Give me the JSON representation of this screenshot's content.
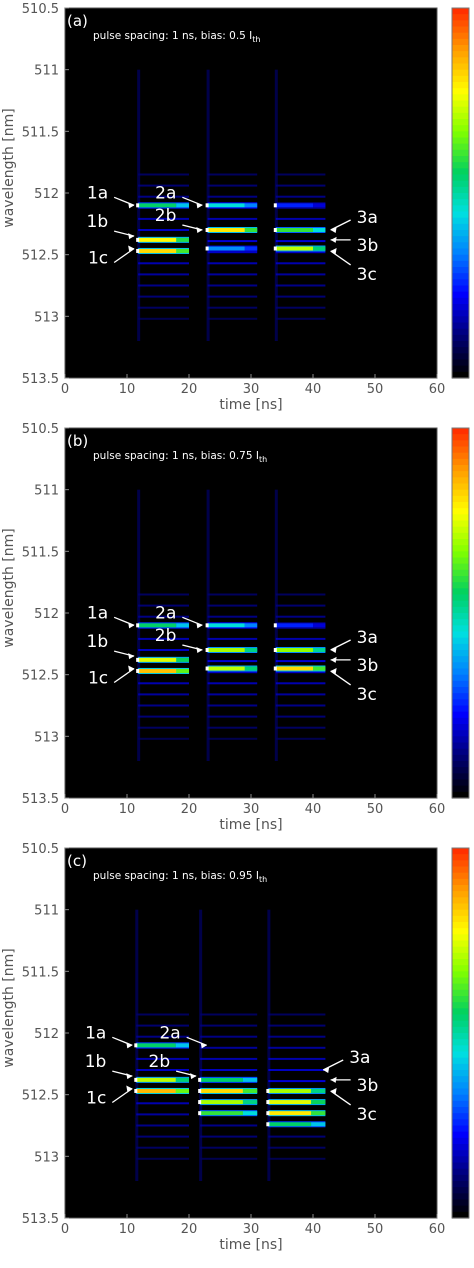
{
  "colormap": [
    "#000000",
    "#00007a",
    "#0000ff",
    "#0080ff",
    "#00e0e0",
    "#00d060",
    "#80ff00",
    "#ffff00",
    "#ffa000",
    "#ff3000"
  ],
  "chart_data": [
    {
      "type": "heatmap",
      "panel_label": "(a)",
      "annotation_prefix": "pulse spacing: 1 ns, bias: 0.5 I",
      "annotation_sub": "th",
      "xlabel": "time [ns]",
      "ylabel": "wavelength [nm]",
      "xlim": [
        0,
        60
      ],
      "ylim": [
        513.5,
        510.5
      ],
      "x_ticks": [
        "0",
        "10",
        "20",
        "30",
        "40",
        "50",
        "60"
      ],
      "y_ticks": [
        "510.5",
        "511",
        "511.5",
        "512",
        "512.5",
        "513",
        "513.5"
      ],
      "pulses": [
        {
          "start": 11.8,
          "end": 20.0,
          "lines": [
            {
              "wl": 512.1,
              "level": 0.55
            },
            {
              "wl": 512.38,
              "level": 0.78
            },
            {
              "wl": 512.47,
              "level": 0.82
            }
          ]
        },
        {
          "start": 23.0,
          "end": 31.0,
          "lines": [
            {
              "wl": 512.1,
              "level": 0.45
            },
            {
              "wl": 512.3,
              "level": 0.8
            },
            {
              "wl": 512.45,
              "level": 0.35
            }
          ]
        },
        {
          "start": 34.0,
          "end": 42.0,
          "lines": [
            {
              "wl": 512.1,
              "level": 0.25
            },
            {
              "wl": 512.3,
              "level": 0.6
            },
            {
              "wl": 512.45,
              "level": 0.72
            }
          ]
        }
      ],
      "markers": [
        {
          "label": "1a",
          "wl": 512.1,
          "t": 11.8,
          "side": "left"
        },
        {
          "label": "1b",
          "wl": 512.35,
          "t": 11.8,
          "side": "left"
        },
        {
          "label": "1c",
          "wl": 512.45,
          "t": 11.8,
          "side": "left"
        },
        {
          "label": "2a",
          "wl": 512.1,
          "t": 22.8,
          "side": "left"
        },
        {
          "label": "2b",
          "wl": 512.3,
          "t": 22.8,
          "side": "left"
        },
        {
          "label": "3a",
          "wl": 512.3,
          "t": 42.2,
          "side": "right"
        },
        {
          "label": "3b",
          "wl": 512.38,
          "t": 42.2,
          "side": "right"
        },
        {
          "label": "3c",
          "wl": 512.47,
          "t": 42.2,
          "side": "right"
        }
      ]
    },
    {
      "type": "heatmap",
      "panel_label": "(b)",
      "annotation_prefix": "pulse spacing: 1 ns, bias: 0.75 I",
      "annotation_sub": "th",
      "xlabel": "time [ns]",
      "ylabel": "wavelength [nm]",
      "xlim": [
        0,
        60
      ],
      "ylim": [
        513.5,
        510.5
      ],
      "x_ticks": [
        "0",
        "10",
        "20",
        "30",
        "40",
        "50",
        "60"
      ],
      "y_ticks": [
        "510.5",
        "511",
        "511.5",
        "512",
        "512.5",
        "513",
        "513.5"
      ],
      "pulses": [
        {
          "start": 11.8,
          "end": 20.0,
          "lines": [
            {
              "wl": 512.1,
              "level": 0.55
            },
            {
              "wl": 512.38,
              "level": 0.75
            },
            {
              "wl": 512.47,
              "level": 0.85
            }
          ]
        },
        {
          "start": 23.0,
          "end": 31.0,
          "lines": [
            {
              "wl": 512.1,
              "level": 0.45
            },
            {
              "wl": 512.3,
              "level": 0.7
            },
            {
              "wl": 512.45,
              "level": 0.72
            }
          ]
        },
        {
          "start": 34.0,
          "end": 42.0,
          "lines": [
            {
              "wl": 512.1,
              "level": 0.25
            },
            {
              "wl": 512.3,
              "level": 0.68
            },
            {
              "wl": 512.45,
              "level": 0.82
            }
          ]
        }
      ],
      "markers": [
        {
          "label": "1a",
          "wl": 512.1,
          "t": 11.8,
          "side": "left"
        },
        {
          "label": "1b",
          "wl": 512.35,
          "t": 11.8,
          "side": "left"
        },
        {
          "label": "1c",
          "wl": 512.45,
          "t": 11.8,
          "side": "left"
        },
        {
          "label": "2a",
          "wl": 512.1,
          "t": 22.8,
          "side": "left"
        },
        {
          "label": "2b",
          "wl": 512.3,
          "t": 22.8,
          "side": "left"
        },
        {
          "label": "3a",
          "wl": 512.3,
          "t": 42.2,
          "side": "right"
        },
        {
          "label": "3b",
          "wl": 512.38,
          "t": 42.2,
          "side": "right"
        },
        {
          "label": "3c",
          "wl": 512.47,
          "t": 42.2,
          "side": "right"
        }
      ]
    },
    {
      "type": "heatmap",
      "panel_label": "(c)",
      "annotation_prefix": "pulse spacing: 1 ns, bias: 0.95 I",
      "annotation_sub": "th",
      "xlabel": "time [ns]",
      "ylabel": "wavelength [nm]",
      "xlim": [
        0,
        60
      ],
      "ylim": [
        513.5,
        510.5
      ],
      "x_ticks": [
        "0",
        "10",
        "20",
        "30",
        "40",
        "50",
        "60"
      ],
      "y_ticks": [
        "510.5",
        "511",
        "511.5",
        "512",
        "512.5",
        "513",
        "513.5"
      ],
      "pulses": [
        {
          "start": 11.5,
          "end": 20.0,
          "lines": [
            {
              "wl": 512.1,
              "level": 0.55
            },
            {
              "wl": 512.38,
              "level": 0.72
            },
            {
              "wl": 512.47,
              "level": 0.86
            }
          ]
        },
        {
          "start": 21.8,
          "end": 31.0,
          "lines": [
            {
              "wl": 512.38,
              "level": 0.55
            },
            {
              "wl": 512.47,
              "level": 0.82
            },
            {
              "wl": 512.56,
              "level": 0.7
            },
            {
              "wl": 512.65,
              "level": 0.6
            }
          ]
        },
        {
          "start": 32.8,
          "end": 42.0,
          "lines": [
            {
              "wl": 512.47,
              "level": 0.7
            },
            {
              "wl": 512.56,
              "level": 0.75
            },
            {
              "wl": 512.65,
              "level": 0.8
            },
            {
              "wl": 512.74,
              "level": 0.55
            }
          ]
        }
      ],
      "markers": [
        {
          "label": "1a",
          "wl": 512.1,
          "t": 11.5,
          "side": "left"
        },
        {
          "label": "1b",
          "wl": 512.35,
          "t": 11.5,
          "side": "left"
        },
        {
          "label": "1c",
          "wl": 512.45,
          "t": 11.5,
          "side": "left"
        },
        {
          "label": "2a",
          "wl": 512.1,
          "t": 23.5,
          "side": "left"
        },
        {
          "label": "2b",
          "wl": 512.35,
          "t": 21.8,
          "side": "left"
        },
        {
          "label": "3a",
          "wl": 512.3,
          "t": 41.0,
          "side": "right"
        },
        {
          "label": "3b",
          "wl": 512.38,
          "t": 42.2,
          "side": "right"
        },
        {
          "label": "3c",
          "wl": 512.47,
          "t": 42.2,
          "side": "right"
        }
      ]
    }
  ]
}
